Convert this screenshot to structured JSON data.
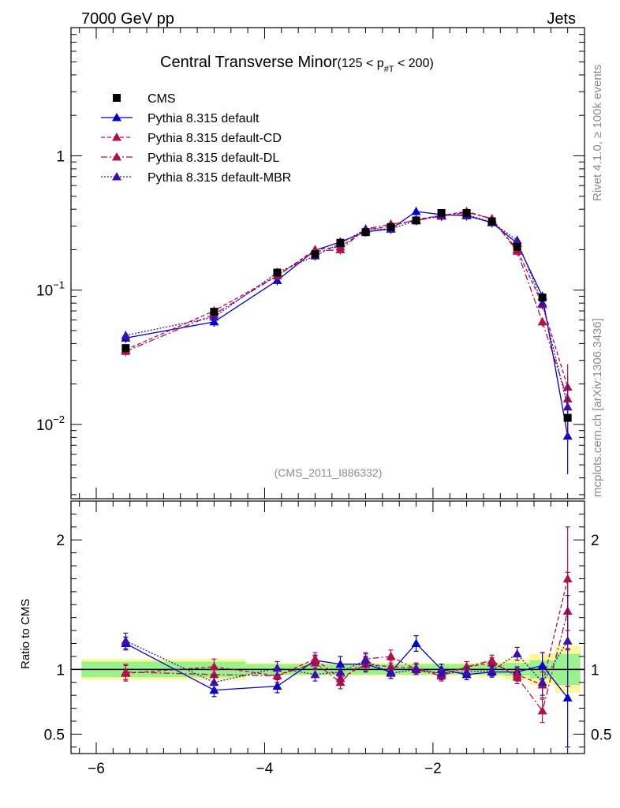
{
  "header": {
    "left": "7000 GeV pp",
    "right": "Jets"
  },
  "side": {
    "top": "Rivet 4.1.0, ≥ 100k events",
    "bottom": "mcplots.cern.ch [arXiv:1306.3436]"
  },
  "chart_data": {
    "type": "line",
    "title": "Central Transverse Minor",
    "title_cut": "(125 < p",
    "title_cut_sub": "#T",
    "title_cut_end": " < 200)",
    "analysis": "(CMS_2011_I886332)",
    "xlabel": "",
    "ylabel": "",
    "ratio_ylabel": "Ratio to CMS",
    "xlim": [
      -6.3,
      -0.2
    ],
    "ylim": [
      0.0028,
      9
    ],
    "ratio_ylim": [
      0.35,
      2.3
    ],
    "x_ticks": [
      -6,
      -4,
      -2
    ],
    "x_tick_labels": [
      "−6",
      "−4",
      "−2"
    ],
    "y_ticks": [
      0.01,
      0.1,
      1
    ],
    "y_tick_labels": [
      {
        "base": "10",
        "exp": "−2"
      },
      {
        "base": "10",
        "exp": "−1"
      },
      {
        "base": "1",
        "exp": ""
      }
    ],
    "ratio_ticks": [
      0.5,
      1,
      2
    ],
    "ratio_tick_labels": [
      "0.5",
      "1",
      "2"
    ],
    "x": [
      -5.65,
      -4.6,
      -3.85,
      -3.4,
      -3.1,
      -2.8,
      -2.5,
      -2.2,
      -1.9,
      -1.6,
      -1.3,
      -1.0,
      -0.7,
      -0.4
    ],
    "data": {
      "name": "CMS",
      "values": [
        0.037,
        0.069,
        0.135,
        0.185,
        0.225,
        0.27,
        0.295,
        0.33,
        0.375,
        0.375,
        0.325,
        0.21,
        0.088,
        0.0112
      ],
      "band_inner": [
        0.06,
        0.06,
        0.04,
        0.04,
        0.04,
        0.04,
        0.04,
        0.04,
        0.04,
        0.04,
        0.04,
        0.05,
        0.07,
        0.12
      ],
      "band_outer": [
        0.08,
        0.08,
        0.05,
        0.05,
        0.05,
        0.05,
        0.05,
        0.05,
        0.05,
        0.05,
        0.06,
        0.08,
        0.12,
        0.18
      ]
    },
    "series": [
      {
        "name": "Pythia 8.315 default",
        "color": "#0000cc",
        "dash": "",
        "values": [
          0.044,
          0.058,
          0.118,
          0.198,
          0.228,
          0.272,
          0.285,
          0.385,
          0.365,
          0.358,
          0.318,
          0.223,
          0.09,
          0.0082
        ],
        "ratio": [
          1.2,
          0.84,
          0.87,
          1.07,
          1.04,
          1.04,
          0.98,
          1.2,
          1.0,
          0.96,
          0.98,
          0.98,
          1.03,
          0.78
        ],
        "ratio_err": [
          0.05,
          0.05,
          0.05,
          0.04,
          0.06,
          0.06,
          0.05,
          0.06,
          0.04,
          0.04,
          0.04,
          0.04,
          0.1,
          0.38
        ]
      },
      {
        "name": "Pythia 8.315 default-CD",
        "color": "#b0104a",
        "dash": "5,3",
        "values": [
          0.036,
          0.07,
          0.128,
          0.2,
          0.21,
          0.28,
          0.3,
          0.335,
          0.36,
          0.385,
          0.34,
          0.2,
          0.078,
          0.019
        ],
        "ratio": [
          0.97,
          1.02,
          0.95,
          1.08,
          0.93,
          1.04,
          1.02,
          1.01,
          0.96,
          1.02,
          1.05,
          0.96,
          0.88,
          1.7
        ],
        "ratio_err": [
          0.06,
          0.06,
          0.05,
          0.05,
          0.05,
          0.05,
          0.05,
          0.04,
          0.04,
          0.04,
          0.04,
          0.05,
          0.1,
          0.4
        ]
      },
      {
        "name": "Pythia 8.315 default-DL",
        "color": "#b0104a",
        "dash": "8,3,2,3",
        "values": [
          0.035,
          0.066,
          0.128,
          0.195,
          0.2,
          0.285,
          0.31,
          0.33,
          0.355,
          0.38,
          0.34,
          0.195,
          0.058,
          0.0155
        ],
        "ratio": [
          0.98,
          0.96,
          0.95,
          1.05,
          0.9,
          1.08,
          1.1,
          1.0,
          0.95,
          1.02,
          1.07,
          0.94,
          0.68,
          1.45
        ],
        "ratio_err": [
          0.06,
          0.06,
          0.05,
          0.05,
          0.05,
          0.05,
          0.05,
          0.04,
          0.04,
          0.04,
          0.04,
          0.05,
          0.09,
          0.3
        ]
      },
      {
        "name": "Pythia 8.315 default-MBR",
        "color": "#3a10a8",
        "dash": "2,2",
        "values": [
          0.046,
          0.063,
          0.135,
          0.18,
          0.222,
          0.285,
          0.285,
          0.33,
          0.36,
          0.365,
          0.32,
          0.235,
          0.08,
          0.0135
        ],
        "ratio": [
          1.22,
          0.9,
          1.01,
          0.96,
          0.98,
          1.07,
          0.97,
          1.0,
          0.97,
          0.98,
          0.99,
          1.12,
          0.9,
          1.22
        ],
        "ratio_err": [
          0.06,
          0.05,
          0.05,
          0.05,
          0.05,
          0.05,
          0.04,
          0.04,
          0.04,
          0.04,
          0.04,
          0.05,
          0.1,
          0.35
        ]
      }
    ]
  }
}
